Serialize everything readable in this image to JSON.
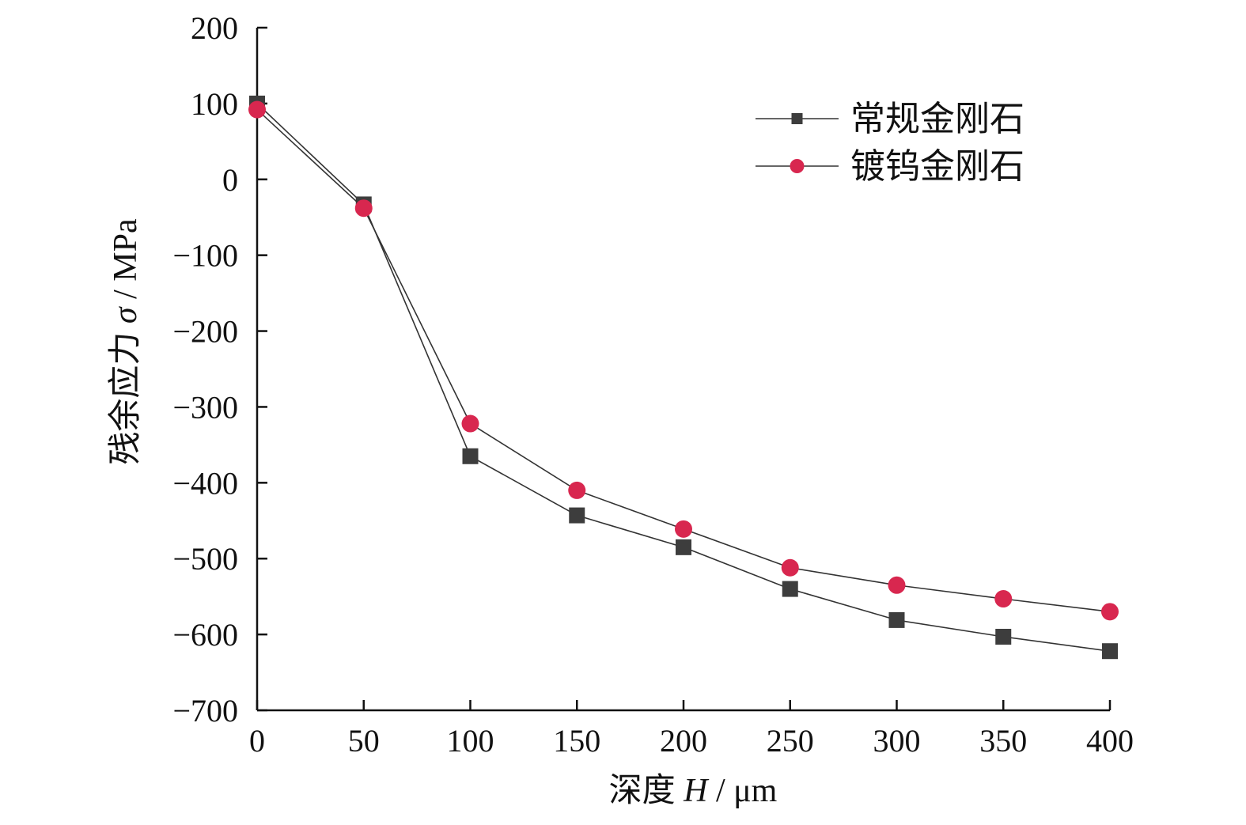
{
  "chart_data": {
    "type": "line",
    "title": "",
    "xlabel": {
      "prefix": "深度 ",
      "symbol": "H",
      "unit": " / μm"
    },
    "ylabel": {
      "prefix": "残余应力 ",
      "symbol": "σ",
      "unit": " / MPa"
    },
    "xlim": [
      0,
      400
    ],
    "ylim": [
      -700,
      200
    ],
    "xticks": [
      0,
      50,
      100,
      150,
      200,
      250,
      300,
      350,
      400
    ],
    "yticks": [
      200,
      100,
      0,
      -100,
      -200,
      -300,
      -400,
      -500,
      -600,
      -700
    ],
    "grid": false,
    "legend_position": "top-right",
    "x": [
      0,
      50,
      100,
      150,
      200,
      250,
      300,
      350,
      400
    ],
    "series": [
      {
        "name": "常规金刚石",
        "marker": "square",
        "color": "#3d3d3d",
        "values": [
          100,
          -33,
          -365,
          -443,
          -485,
          -540,
          -581,
          -603,
          -622
        ]
      },
      {
        "name": "镀钨金刚石",
        "marker": "circle",
        "color": "#d8274f",
        "values": [
          92,
          -38,
          -322,
          -410,
          -461,
          -512,
          -535,
          -553,
          -570
        ]
      }
    ]
  }
}
